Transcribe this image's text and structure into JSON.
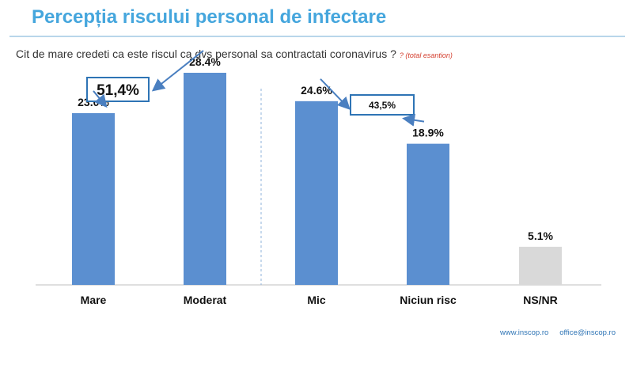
{
  "header": {
    "title": "Percepția riscului personal de infectare",
    "question": "Cit de mare credeti ca este riscul ca dvs personal  sa contractati coronavirus ?",
    "note": "? (total esantion)"
  },
  "colors": {
    "bar": "#5b8fd0",
    "bar_nsnr": "#d9d9d9",
    "accent": "#45a6dd",
    "arrow": "#4a7fc0"
  },
  "chart_data": {
    "type": "bar",
    "categories": [
      "Mare",
      "Moderat",
      "Mic",
      "Niciun risc",
      "NS/NR"
    ],
    "values": [
      23.0,
      28.4,
      24.6,
      18.9,
      5.1
    ],
    "value_labels": [
      "23.0%",
      "28.4%",
      "24.6%",
      "18.9%",
      "5.1%"
    ],
    "groups": [
      {
        "categories": [
          "Mare",
          "Moderat"
        ],
        "total_label": "51,4%"
      },
      {
        "categories": [
          "Mic",
          "Niciun risc"
        ],
        "total_label": "43,5%"
      }
    ],
    "ylim": [
      0,
      32
    ],
    "grid": false
  },
  "footer": {
    "website": "www.inscop.ro",
    "email": "office@inscop.ro"
  }
}
